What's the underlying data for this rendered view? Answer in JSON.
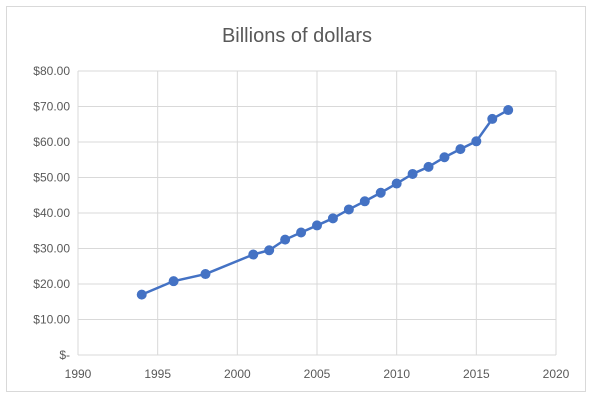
{
  "chart_data": {
    "type": "line",
    "title": "Billions of dollars",
    "xlabel": "",
    "ylabel": "",
    "xlim": [
      1990,
      2020
    ],
    "ylim": [
      0,
      80
    ],
    "x_ticks": [
      1990,
      1995,
      2000,
      2005,
      2010,
      2015,
      2020
    ],
    "y_ticks": [
      0,
      10,
      20,
      30,
      40,
      50,
      60,
      70,
      80
    ],
    "y_tick_labels": [
      "$-",
      "$10.00",
      "$20.00",
      "$30.00",
      "$40.00",
      "$50.00",
      "$60.00",
      "$70.00",
      "$80.00"
    ],
    "x_grid": true,
    "y_grid": true,
    "legend": "none",
    "series": [
      {
        "color": "#4472C4",
        "marker": "circle",
        "x": [
          1994,
          1996,
          1998,
          2001,
          2002,
          2003,
          2004,
          2005,
          2006,
          2007,
          2008,
          2009,
          2010,
          2011,
          2012,
          2013,
          2014,
          2015,
          2016,
          2017
        ],
        "y": [
          17.0,
          20.8,
          22.8,
          28.3,
          29.5,
          32.5,
          34.5,
          36.5,
          38.5,
          41.0,
          43.3,
          45.7,
          48.3,
          51.0,
          53.0,
          55.7,
          58.0,
          60.2,
          66.5,
          69.0
        ]
      }
    ]
  }
}
